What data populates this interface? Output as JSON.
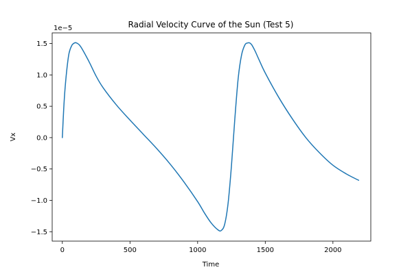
{
  "chart_data": {
    "type": "line",
    "title": "Radial Velocity Curve of the Sun (Test 5)",
    "xlabel": "Time",
    "ylabel": "Vx",
    "y_offset_label": "1e−5",
    "xlim": [
      -75,
      2280
    ],
    "ylim": [
      -1.65,
      1.67
    ],
    "x_ticks": [
      0,
      500,
      1000,
      1500,
      2000
    ],
    "x_tick_labels": [
      "0",
      "500",
      "1000",
      "1500",
      "2000"
    ],
    "y_ticks": [
      -1.5,
      -1.0,
      -0.5,
      0.0,
      0.5,
      1.0,
      1.5
    ],
    "y_tick_labels": [
      "−1.5",
      "−1.0",
      "−0.5",
      "0.0",
      "0.5",
      "1.0",
      "1.5"
    ],
    "grid": false,
    "colors": {
      "line": "#1f77b4"
    },
    "series": [
      {
        "x": [
          0,
          10,
          20,
          35,
          50,
          70,
          90,
          105,
          125,
          150,
          200,
          250,
          300,
          400,
          500,
          600,
          700,
          800,
          900,
          1000,
          1050,
          1100,
          1150,
          1175,
          1200,
          1225,
          1250,
          1275,
          1300,
          1325,
          1350,
          1370,
          1385,
          1400,
          1425,
          1450,
          1500,
          1600,
          1700,
          1800,
          1900,
          2000,
          2100,
          2190
        ],
        "y": [
          0.0,
          0.45,
          0.78,
          1.12,
          1.35,
          1.47,
          1.51,
          1.51,
          1.48,
          1.4,
          1.2,
          0.98,
          0.8,
          0.52,
          0.28,
          0.05,
          -0.18,
          -0.43,
          -0.71,
          -1.02,
          -1.2,
          -1.36,
          -1.47,
          -1.48,
          -1.38,
          -1.05,
          -0.45,
          0.3,
          0.95,
          1.32,
          1.48,
          1.51,
          1.51,
          1.48,
          1.38,
          1.26,
          1.03,
          0.64,
          0.3,
          0.0,
          -0.24,
          -0.44,
          -0.58,
          -0.68
        ]
      }
    ]
  }
}
